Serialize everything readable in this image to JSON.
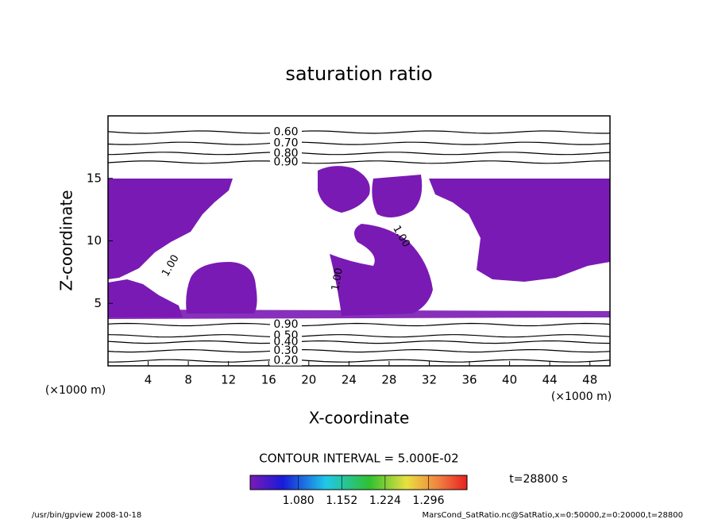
{
  "chart_data": {
    "type": "contour",
    "title": "saturation ratio",
    "x_label": "X-coordinate",
    "y_label": "Z-coordinate",
    "x_unit_left": "(×1000 m)",
    "x_unit_right": "(×1000 m)",
    "xlim": [
      0,
      50
    ],
    "xticks": [
      4,
      8,
      12,
      16,
      20,
      24,
      28,
      32,
      36,
      40,
      44,
      48
    ],
    "ylim": [
      0,
      20
    ],
    "yticks": [
      5,
      10,
      15
    ],
    "fill_color": "#7a1ab4",
    "contours": [
      {
        "value": 0.6,
        "label": "0.60",
        "z": 18.7
      },
      {
        "value": 0.7,
        "label": "0.70",
        "z": 17.8
      },
      {
        "value": 0.8,
        "label": "0.80",
        "z": 17.0
      },
      {
        "value": 0.9,
        "label": "0.90",
        "z": 16.3
      },
      {
        "value": 0.9,
        "label": "0.90",
        "z": 3.3
      },
      {
        "value": 0.5,
        "label": "0.50",
        "z": 2.4
      },
      {
        "value": 0.4,
        "label": "0.40",
        "z": 1.9
      },
      {
        "value": 0.3,
        "label": "0.30",
        "z": 1.2
      },
      {
        "value": 0.2,
        "label": "0.20",
        "z": 0.4
      }
    ],
    "inner_labels": [
      "1.00",
      "1.00",
      "1.00"
    ],
    "contour_interval": "CONTOUR INTERVAL = 5.000E-02",
    "time_label": "t=28800 s",
    "colorbar": {
      "clim": [
        1.0,
        1.36
      ],
      "ticks": [
        {
          "value": 1.08,
          "label": "1.080"
        },
        {
          "value": 1.152,
          "label": "1.152"
        },
        {
          "value": 1.224,
          "label": "1.224"
        },
        {
          "value": 1.296,
          "label": "1.296"
        }
      ]
    },
    "footer_left": "/usr/bin/gpview   2008-10-18",
    "footer_right": "MarsCond_SatRatio.nc@SatRatio,x=0:50000,z=0:20000,t=28800"
  }
}
